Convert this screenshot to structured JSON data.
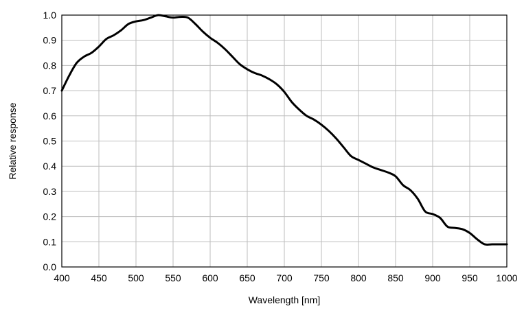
{
  "chart_data": {
    "type": "line",
    "title": "",
    "xlabel": "Wavelength [nm]",
    "ylabel": "Relative response",
    "xlim": [
      400,
      1000
    ],
    "ylim": [
      0.0,
      1.0
    ],
    "xticks": [
      400,
      450,
      500,
      550,
      600,
      650,
      700,
      750,
      800,
      850,
      900,
      950,
      1000
    ],
    "yticks": [
      0.0,
      0.1,
      0.2,
      0.3,
      0.4,
      0.5,
      0.6,
      0.7,
      0.8,
      0.9,
      1.0
    ],
    "xtick_labels": [
      "400",
      "450",
      "500",
      "550",
      "600",
      "650",
      "700",
      "750",
      "800",
      "850",
      "900",
      "950",
      "1000"
    ],
    "ytick_labels": [
      "0.0",
      "0.1",
      "0.2",
      "0.3",
      "0.4",
      "0.5",
      "0.6",
      "0.7",
      "0.8",
      "0.9",
      "1.0"
    ],
    "grid": true,
    "line_color": "#000000",
    "grid_color": "#bdbdbd",
    "series": [
      {
        "x": [
          400,
          410,
          420,
          430,
          440,
          450,
          460,
          470,
          480,
          490,
          500,
          510,
          520,
          530,
          540,
          550,
          560,
          570,
          580,
          590,
          600,
          610,
          620,
          630,
          640,
          650,
          660,
          670,
          680,
          690,
          700,
          710,
          720,
          730,
          740,
          750,
          760,
          770,
          780,
          790,
          800,
          810,
          820,
          830,
          840,
          850,
          860,
          870,
          880,
          890,
          900,
          910,
          920,
          930,
          940,
          950,
          960,
          970,
          980,
          990,
          1000
        ],
        "y": [
          0.7,
          0.76,
          0.81,
          0.835,
          0.85,
          0.875,
          0.905,
          0.92,
          0.94,
          0.965,
          0.975,
          0.98,
          0.99,
          1.0,
          0.995,
          0.99,
          0.993,
          0.99,
          0.965,
          0.935,
          0.91,
          0.89,
          0.865,
          0.835,
          0.805,
          0.785,
          0.77,
          0.76,
          0.745,
          0.725,
          0.695,
          0.655,
          0.625,
          0.6,
          0.585,
          0.565,
          0.54,
          0.51,
          0.475,
          0.44,
          0.425,
          0.41,
          0.395,
          0.385,
          0.375,
          0.36,
          0.325,
          0.305,
          0.27,
          0.22,
          0.21,
          0.195,
          0.16,
          0.155,
          0.15,
          0.135,
          0.11,
          0.09,
          0.09,
          0.09,
          0.09
        ]
      }
    ]
  }
}
